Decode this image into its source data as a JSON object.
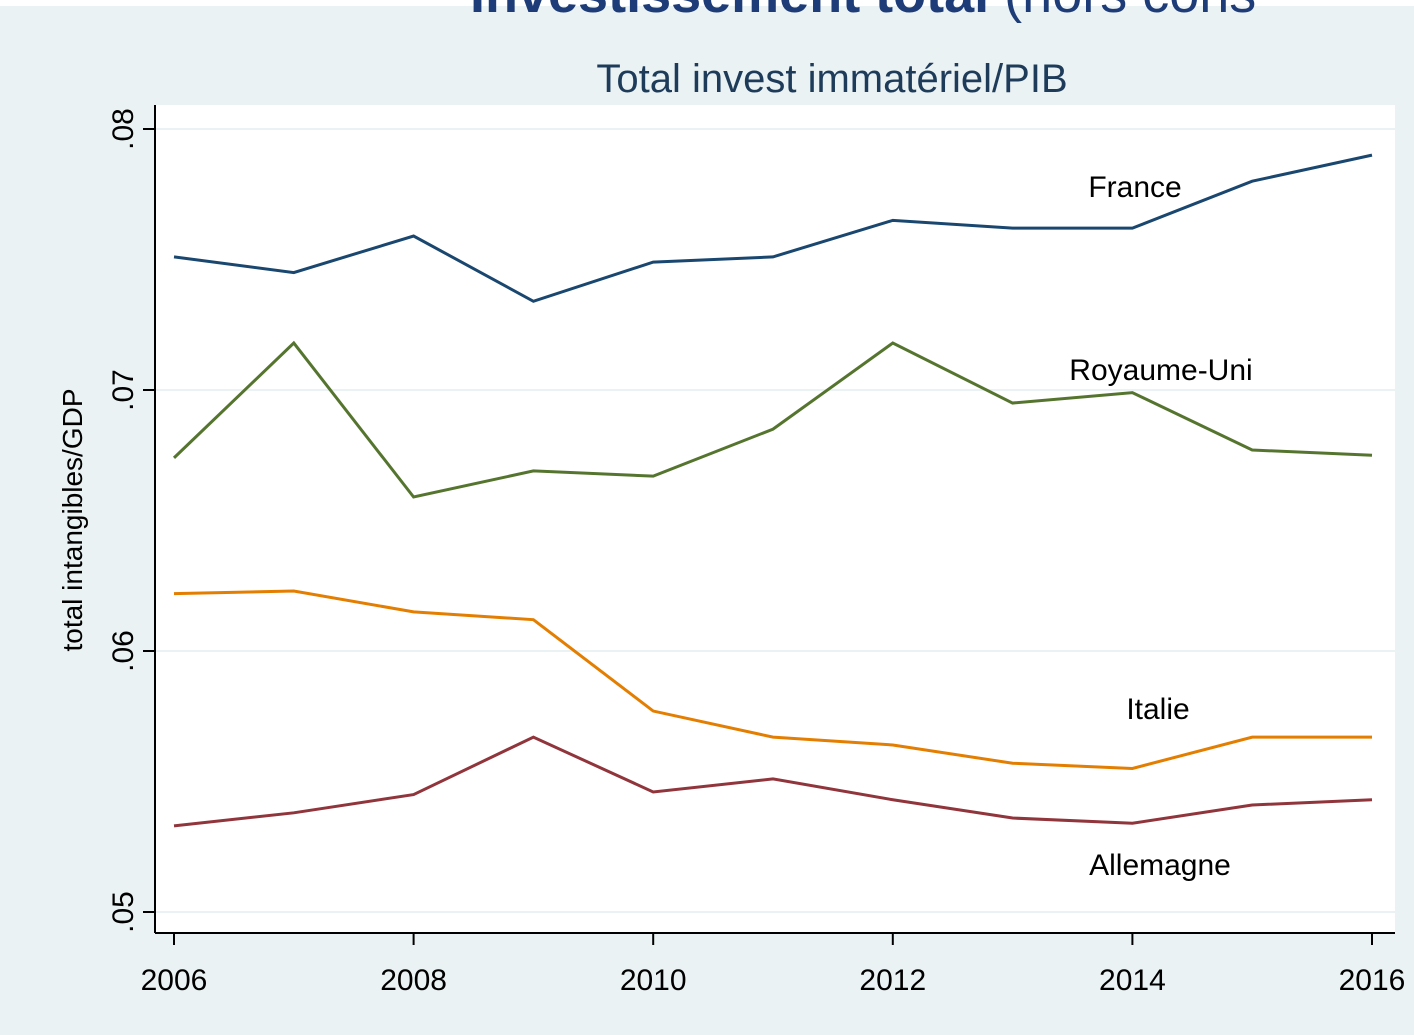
{
  "header": {
    "bold": "Investissement total",
    "rest": " (hors cons"
  },
  "chart_data": {
    "type": "line",
    "title": "Total invest immatériel/PIB",
    "ylabel": "total intangibles/GDP",
    "x": [
      2006,
      2007,
      2008,
      2009,
      2010,
      2011,
      2012,
      2013,
      2014,
      2015,
      2016
    ],
    "series": [
      {
        "name": "France",
        "color": "#1a476f",
        "values": [
          0.0751,
          0.0745,
          0.0759,
          0.0734,
          0.0749,
          0.0751,
          0.0765,
          0.0762,
          0.0762,
          0.078,
          0.079
        ]
      },
      {
        "name": "Royaume-Uni",
        "color": "#55752f",
        "values": [
          0.0674,
          0.0718,
          0.0659,
          0.0669,
          0.0667,
          0.0685,
          0.0718,
          0.0695,
          0.0699,
          0.0677,
          0.0675
        ]
      },
      {
        "name": "Italie",
        "color": "#e37e00",
        "values": [
          0.0622,
          0.0623,
          0.0615,
          0.0612,
          0.0577,
          0.0567,
          0.0564,
          0.0557,
          0.0555,
          0.0567,
          0.0567
        ]
      },
      {
        "name": "Allemagne",
        "color": "#90353b",
        "values": [
          0.0533,
          0.0538,
          0.0545,
          0.0567,
          0.0546,
          0.0551,
          0.0543,
          0.0536,
          0.0534,
          0.0541,
          0.0543
        ]
      }
    ],
    "xlim": [
      2006,
      2016
    ],
    "xticks": [
      2006,
      2008,
      2010,
      2012,
      2014,
      2016
    ],
    "ylim": [
      0.05,
      0.08
    ],
    "yticks": [
      {
        "value": 0.05,
        "label": ".05"
      },
      {
        "value": 0.06,
        "label": ".06"
      },
      {
        "value": 0.07,
        "label": ".07"
      },
      {
        "value": 0.08,
        "label": ".08"
      }
    ],
    "grid": true
  }
}
